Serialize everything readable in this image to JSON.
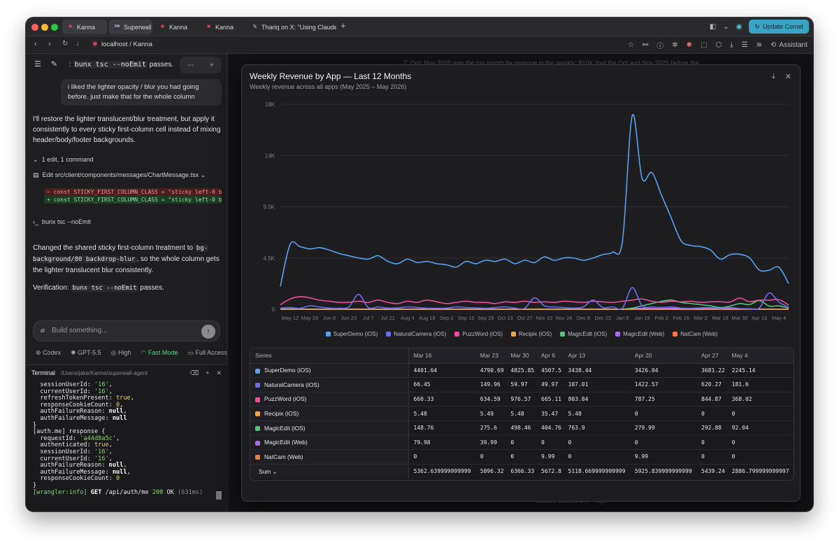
{
  "browser": {
    "tabs": [
      {
        "label": "Kanna",
        "fav_color": "#e0475f",
        "fav_glyph": "✺"
      },
      {
        "label": "Superwall",
        "fav_color": "#334",
        "fav_glyph": "SW"
      },
      {
        "label": "Kanna",
        "fav_color": "#e0475f",
        "fav_glyph": "✺"
      },
      {
        "label": "Kanna",
        "fav_color": "#e0475f",
        "fav_glyph": "✺"
      },
      {
        "label": "Thariq on X: \"Using Claude C",
        "fav_color": "#000",
        "fav_glyph": "𝕏"
      }
    ],
    "new_tab": "+",
    "update_label": "Update Comet",
    "url": "localhost / Kanna",
    "assistant_label": "Assistant"
  },
  "left": {
    "top_line_prefix": ":",
    "top_line_code": "bunx tsc --noEmit",
    "top_line_suffix": "passes.",
    "user_msg": "i liked the lighter opacity / blur you had going before. just make that for the whole column",
    "reply1": "I'll restore the lighter translucent/blur treatment, but apply it consistently to every sticky first-column cell instead of mixing header/body/footer backgrounds.",
    "edits_summary": "1 edit, 1 command",
    "edit_file": "Edit src/client/components/messages/ChartMessage.tsx",
    "diff_removed": "−  const STICKY_FIRST_COLUMN_CLASS = \"sticky left-0 bo",
    "diff_added": "+  const STICKY_FIRST_COLUMN_CLASS = \"sticky left-0 bo",
    "command": "bunx tsc --noEmit",
    "reply2_a": "Changed the shared sticky first-column treatment to",
    "reply2_code": "bg-background/80 backdrop-blur",
    "reply2_b": ", so the whole column gets the lighter translucent blur consistently.",
    "verify_label": "Verification:",
    "verify_code": "bunx tsc --noEmit",
    "verify_suffix": "passes.",
    "input_placeholder": "Build something...",
    "model_items": [
      "Codex",
      "GPT-5.5",
      "High",
      "Fast Mode",
      "Full Access"
    ],
    "terminal_title": "Terminal",
    "terminal_path": "/Users/jake/Kanna/superwall-agent",
    "terminal_lines": [
      "  sessionUserId: '16',",
      "  currentUserId: '16',",
      "  refreshTokenPresent: true,",
      "  responseCookieCount: 0,",
      "  authFailureReason: null,",
      "  authFailureMessage: null",
      "}",
      "[auth.me] response {",
      "  requestId: 'a44d8a5c',",
      "  authenticated: true,",
      "  sessionUserId: '16',",
      "  currentUserId: '16',",
      "  authFailureReason: null,",
      "  authFailureMessage: null,",
      "  responseCookieCount: 0",
      "}",
      "[wrangler:info] GET /api/auth/me 200 OK (631ms)"
    ]
  },
  "main": {
    "bg_text": "7. Out: Nov 2025 was the top month by revenue in the weekly: $10K (but the Oct and Nov 2025 before the",
    "bg_bottom": "Claude Sonnet 4.6  ·  High"
  },
  "modal": {
    "title": "Weekly Revenue by App — Last 12 Months",
    "subtitle": "Weekly revenue across all apps (May 2025 – May 2026)",
    "table": {
      "header_series": "Series",
      "columns": [
        "Mar 16",
        "Mar 23",
        "Mar 30",
        "Apr 6",
        "Apr 13",
        "Apr 20",
        "Apr 27",
        "May 4"
      ],
      "rows": [
        {
          "name": "SuperDemo (iOS)",
          "color": "#5aa0f2",
          "values": [
            "4401.64",
            "4790.69",
            "4825.85",
            "4507.5",
            "3438.44",
            "3426.04",
            "3681.22",
            "2245.14"
          ]
        },
        {
          "name": "NaturalCamera (iOS)",
          "color": "#6b6cf0",
          "values": [
            "66.45",
            "149.96",
            "59.97",
            "49.97",
            "107.01",
            "1422.57",
            "620.27",
            "181.6"
          ]
        },
        {
          "name": "PuzzWord (iOS)",
          "color": "#ee4d9a",
          "values": [
            "660.33",
            "634.59",
            "976.57",
            "665.11",
            "803.84",
            "787.25",
            "844.87",
            "368.02"
          ]
        },
        {
          "name": "Recipix (iOS)",
          "color": "#f0a63c",
          "values": [
            "5.48",
            "5.49",
            "5.48",
            "35.47",
            "5.48",
            "0",
            "0",
            "0"
          ]
        },
        {
          "name": "MagicEdit (iOS)",
          "color": "#4fc77a",
          "values": [
            "148.76",
            "275.6",
            "498.46",
            "404.76",
            "763.9",
            "279.99",
            "292.88",
            "92.04"
          ]
        },
        {
          "name": "MagicEdit (Web)",
          "color": "#a56cf0",
          "values": [
            "79.98",
            "39.99",
            "0",
            "0",
            "0",
            "0",
            "0",
            "0"
          ]
        },
        {
          "name": "NatCam (Web)",
          "color": "#f07a3a",
          "values": [
            "0",
            "0",
            "0",
            "9.99",
            "0",
            "9.99",
            "0",
            "0"
          ]
        }
      ],
      "sum_label": "Sum",
      "sum_values": [
        "5362.639999999999",
        "5896.32",
        "6366.33",
        "5672.8",
        "5118.669999999999",
        "5925.839999999999",
        "5439.24",
        "2886.799999999997"
      ]
    }
  },
  "chart_data": {
    "type": "line",
    "title": "Weekly Revenue by App — Last 12 Months",
    "subtitle": "Weekly revenue across all apps (May 2025 – May 2026)",
    "x_tick_labels": [
      "May 12",
      "May 26",
      "Jun 9",
      "Jun 23",
      "Jul 7",
      "Jul 21",
      "Aug 4",
      "Aug 18",
      "Sep 1",
      "Sep 15",
      "Sep 29",
      "Oct 13",
      "Oct 27",
      "Nov 10",
      "Nov 24",
      "Dec 8",
      "Dec 22",
      "Jan 5",
      "Jan 19",
      "Feb 2",
      "Feb 16",
      "Mar 2",
      "Mar 16",
      "Mar 30",
      "Apr 13",
      "May 4"
    ],
    "y_ticks": [
      "0",
      "4.5K",
      "9.0K",
      "14K",
      "18K"
    ],
    "ylim": [
      0,
      18000
    ],
    "legend_placement": "bottom",
    "x": [
      "May 5",
      "May 12",
      "May 19",
      "May 26",
      "Jun 2",
      "Jun 9",
      "Jun 16",
      "Jun 23",
      "Jun 30",
      "Jul 7",
      "Jul 14",
      "Jul 21",
      "Jul 28",
      "Aug 4",
      "Aug 11",
      "Aug 18",
      "Aug 25",
      "Sep 1",
      "Sep 8",
      "Sep 15",
      "Sep 22",
      "Sep 29",
      "Oct 6",
      "Oct 13",
      "Oct 20",
      "Oct 27",
      "Nov 3",
      "Nov 10",
      "Nov 17",
      "Nov 24",
      "Dec 1",
      "Dec 8",
      "Dec 15",
      "Dec 22",
      "Dec 29",
      "Jan 5",
      "Jan 12",
      "Jan 19",
      "Jan 26",
      "Feb 2",
      "Feb 9",
      "Feb 16",
      "Feb 23",
      "Mar 2",
      "Mar 9",
      "Mar 16",
      "Mar 23",
      "Mar 30",
      "Apr 6",
      "Apr 13",
      "Apr 20",
      "Apr 27",
      "May 4"
    ],
    "series": [
      {
        "name": "SuperDemo (iOS)",
        "color": "#5aa0f2",
        "values": [
          2000,
          5700,
          5500,
          5300,
          5400,
          5200,
          4900,
          4700,
          4500,
          4400,
          4700,
          4200,
          4000,
          4400,
          4100,
          4200,
          4000,
          3900,
          3700,
          4200,
          4000,
          4300,
          4200,
          4400,
          4000,
          4300,
          4100,
          4600,
          4300,
          4500,
          4500,
          4300,
          4500,
          4800,
          5000,
          6000,
          17000,
          11500,
          12000,
          10000,
          8000,
          6000,
          5600,
          5500,
          5200,
          4401.64,
          4790.69,
          4825.85,
          4507.5,
          3438.44,
          3426.04,
          3681.22,
          2245.14
        ]
      },
      {
        "name": "NaturalCamera (iOS)",
        "color": "#6b6cf0",
        "values": [
          100,
          150,
          80,
          300,
          200,
          100,
          90,
          200,
          1300,
          150,
          200,
          100,
          120,
          200,
          150,
          90,
          80,
          100,
          200,
          150,
          120,
          80,
          150,
          200,
          100,
          90,
          1000,
          300,
          200,
          150,
          100,
          200,
          800,
          150,
          200,
          100,
          1900,
          300,
          200,
          150,
          200,
          100,
          80,
          120,
          150,
          66.45,
          149.96,
          59.97,
          49.97,
          107.01,
          1422.57,
          620.27,
          181.6
        ]
      },
      {
        "name": "PuzzWord (iOS)",
        "color": "#ee4d9a",
        "values": [
          400,
          900,
          1100,
          1000,
          800,
          700,
          600,
          600,
          700,
          600,
          800,
          600,
          500,
          700,
          600,
          800,
          650,
          500,
          600,
          700,
          600,
          600,
          500,
          650,
          600,
          700,
          600,
          650,
          600,
          700,
          650,
          600,
          700,
          650,
          600,
          700,
          800,
          900,
          700,
          600,
          700,
          650,
          700,
          600,
          650,
          660.33,
          634.59,
          976.57,
          665.11,
          803.84,
          787.25,
          844.87,
          368.02
        ]
      },
      {
        "name": "Recipix (iOS)",
        "color": "#f0a63c",
        "values": [
          10,
          20,
          15,
          10,
          8,
          5,
          6,
          5,
          5,
          5,
          5,
          5,
          5,
          5,
          5,
          5,
          5,
          5,
          5,
          5,
          5,
          5,
          5,
          5,
          5,
          5,
          5,
          5,
          5,
          5,
          5,
          5,
          5,
          5,
          5,
          5,
          5,
          5,
          5,
          5,
          5,
          5,
          5,
          5,
          5,
          5.48,
          5.49,
          5.48,
          35.47,
          5.48,
          0,
          0,
          0
        ]
      },
      {
        "name": "MagicEdit (iOS)",
        "color": "#4fc77a",
        "values": [
          0,
          0,
          0,
          0,
          0,
          0,
          0,
          0,
          0,
          0,
          0,
          0,
          0,
          0,
          0,
          0,
          0,
          0,
          0,
          0,
          0,
          0,
          0,
          0,
          0,
          0,
          0,
          0,
          0,
          0,
          0,
          0,
          0,
          0,
          0,
          0,
          100,
          300,
          500,
          700,
          800,
          600,
          500,
          400,
          300,
          148.76,
          275.6,
          498.46,
          404.76,
          763.9,
          279.99,
          292.88,
          92.04
        ]
      },
      {
        "name": "MagicEdit (Web)",
        "color": "#a56cf0",
        "values": [
          0,
          0,
          0,
          0,
          0,
          0,
          0,
          0,
          0,
          0,
          0,
          0,
          0,
          0,
          0,
          0,
          0,
          0,
          0,
          0,
          0,
          0,
          0,
          0,
          0,
          0,
          0,
          0,
          0,
          0,
          0,
          0,
          0,
          0,
          0,
          0,
          40,
          80,
          60,
          50,
          80,
          60,
          70,
          50,
          60,
          79.98,
          39.99,
          0,
          0,
          0,
          0,
          0,
          0
        ]
      },
      {
        "name": "NatCam (Web)",
        "color": "#f07a3a",
        "values": [
          0,
          0,
          0,
          0,
          0,
          0,
          0,
          0,
          0,
          0,
          0,
          0,
          0,
          0,
          0,
          0,
          0,
          0,
          0,
          0,
          0,
          0,
          0,
          0,
          0,
          0,
          0,
          0,
          0,
          0,
          0,
          0,
          0,
          0,
          0,
          0,
          0,
          0,
          0,
          0,
          0,
          0,
          0,
          0,
          0,
          0,
          0,
          0,
          9.99,
          0,
          9.99,
          0,
          0
        ]
      }
    ]
  }
}
